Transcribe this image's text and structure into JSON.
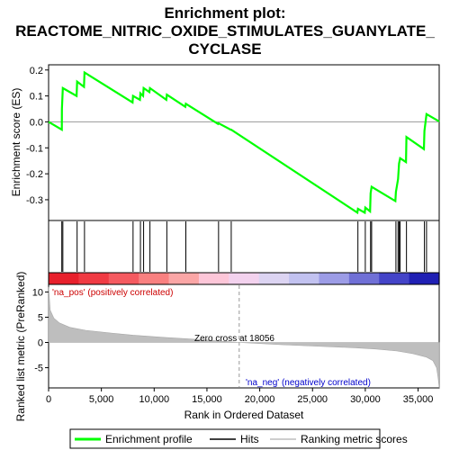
{
  "chart_data": {
    "type": "line",
    "title_lines": [
      "Enrichment plot:",
      "REACTOME_NITRIC_OXIDE_STIMULATES_GUANYLATE_",
      "CYCLASE"
    ],
    "ylabel_top": "Enrichment score (ES)",
    "ylabel_bottom": "Ranked list metric (PreRanked)",
    "xlabel": "Rank in Ordered Dataset",
    "x_ticks": [
      0,
      5000,
      10000,
      15000,
      20000,
      25000,
      30000,
      35000
    ],
    "x_tick_labels": [
      "0",
      "5,000",
      "10,000",
      "15,000",
      "20,000",
      "25,000",
      "30,000",
      "35,000"
    ],
    "xlim": [
      0,
      37000
    ],
    "es_ylim": [
      -0.38,
      0.22
    ],
    "es_ticks": [
      0.2,
      0.1,
      0.0,
      -0.1,
      -0.2,
      -0.3
    ],
    "es_tick_labels": [
      "0.2",
      "0.1",
      "0.0",
      "-0.1",
      "-0.2",
      "-0.3"
    ],
    "metric_ylim": [
      -9,
      11.5
    ],
    "metric_ticks": [
      10,
      5,
      0,
      -5
    ],
    "metric_tick_labels": [
      "10",
      "5",
      "0",
      "-5"
    ],
    "hits": [
      1250,
      1350,
      2700,
      3400,
      8000,
      8700,
      9000,
      9600,
      11200,
      13000,
      16100,
      17300,
      29300,
      30000,
      30500,
      30600,
      32900,
      33100,
      33200,
      33300,
      33900,
      35600,
      35800
    ],
    "es_points": [
      [
        0,
        0.0
      ],
      [
        1250,
        -0.03
      ],
      [
        1260,
        0.05
      ],
      [
        1350,
        0.13
      ],
      [
        2650,
        0.1
      ],
      [
        2700,
        0.155
      ],
      [
        3350,
        0.135
      ],
      [
        3400,
        0.19
      ],
      [
        7950,
        0.075
      ],
      [
        8000,
        0.1
      ],
      [
        8650,
        0.085
      ],
      [
        8700,
        0.11
      ],
      [
        8950,
        0.1
      ],
      [
        9000,
        0.13
      ],
      [
        9550,
        0.115
      ],
      [
        9600,
        0.13
      ],
      [
        11150,
        0.085
      ],
      [
        11200,
        0.105
      ],
      [
        12950,
        0.058
      ],
      [
        13000,
        0.07
      ],
      [
        16050,
        -0.008
      ],
      [
        16100,
        -0.005
      ],
      [
        17250,
        -0.03
      ],
      [
        17300,
        -0.03
      ],
      [
        29250,
        -0.35
      ],
      [
        29300,
        -0.335
      ],
      [
        29950,
        -0.35
      ],
      [
        30000,
        -0.33
      ],
      [
        30450,
        -0.345
      ],
      [
        30500,
        -0.275
      ],
      [
        30600,
        -0.25
      ],
      [
        32850,
        -0.305
      ],
      [
        32900,
        -0.27
      ],
      [
        33100,
        -0.22
      ],
      [
        33200,
        -0.16
      ],
      [
        33300,
        -0.14
      ],
      [
        33850,
        -0.155
      ],
      [
        33900,
        -0.058
      ],
      [
        35550,
        -0.105
      ],
      [
        35600,
        -0.035
      ],
      [
        35800,
        0.03
      ],
      [
        37000,
        0.002
      ]
    ],
    "metric_curve": [
      [
        0,
        11
      ],
      [
        150,
        6.4
      ],
      [
        500,
        4.8
      ],
      [
        1000,
        3.9
      ],
      [
        2000,
        3.0
      ],
      [
        3500,
        2.4
      ],
      [
        5500,
        1.95
      ],
      [
        8000,
        1.45
      ],
      [
        11000,
        1.0
      ],
      [
        14000,
        0.6
      ],
      [
        18056,
        0.0
      ],
      [
        22000,
        -0.45
      ],
      [
        26000,
        -0.8
      ],
      [
        29000,
        -1.05
      ],
      [
        31000,
        -1.3
      ],
      [
        33000,
        -1.7
      ],
      [
        34500,
        -2.2
      ],
      [
        35800,
        -2.9
      ],
      [
        36400,
        -3.6
      ],
      [
        36750,
        -5.0
      ],
      [
        36900,
        -7.0
      ],
      [
        37000,
        -9.0
      ]
    ],
    "heatmap_colors": [
      "#e8202c",
      "#f03a43",
      "#f55a60",
      "#f98080",
      "#fba6a6",
      "#fdc6d8",
      "#f3d2ee",
      "#dcd4f2",
      "#c2c2f0",
      "#9c9ce6",
      "#7070d6",
      "#4444c8",
      "#2020b4"
    ],
    "zero_cross_label": "Zero cross at 18056",
    "zero_cross_rank": 18056,
    "pos_label": "'na_pos' (positively correlated)",
    "neg_label": "'na_neg' (negatively correlated)",
    "legend": [
      "Enrichment profile",
      "Hits",
      "Ranking metric scores"
    ],
    "colors": {
      "es_line": "#00ff00",
      "hit": "#000000",
      "metric": "#bebebe",
      "pos_text": "#cc0000",
      "neg_text": "#0000cc",
      "zero_line": "#999999"
    }
  }
}
